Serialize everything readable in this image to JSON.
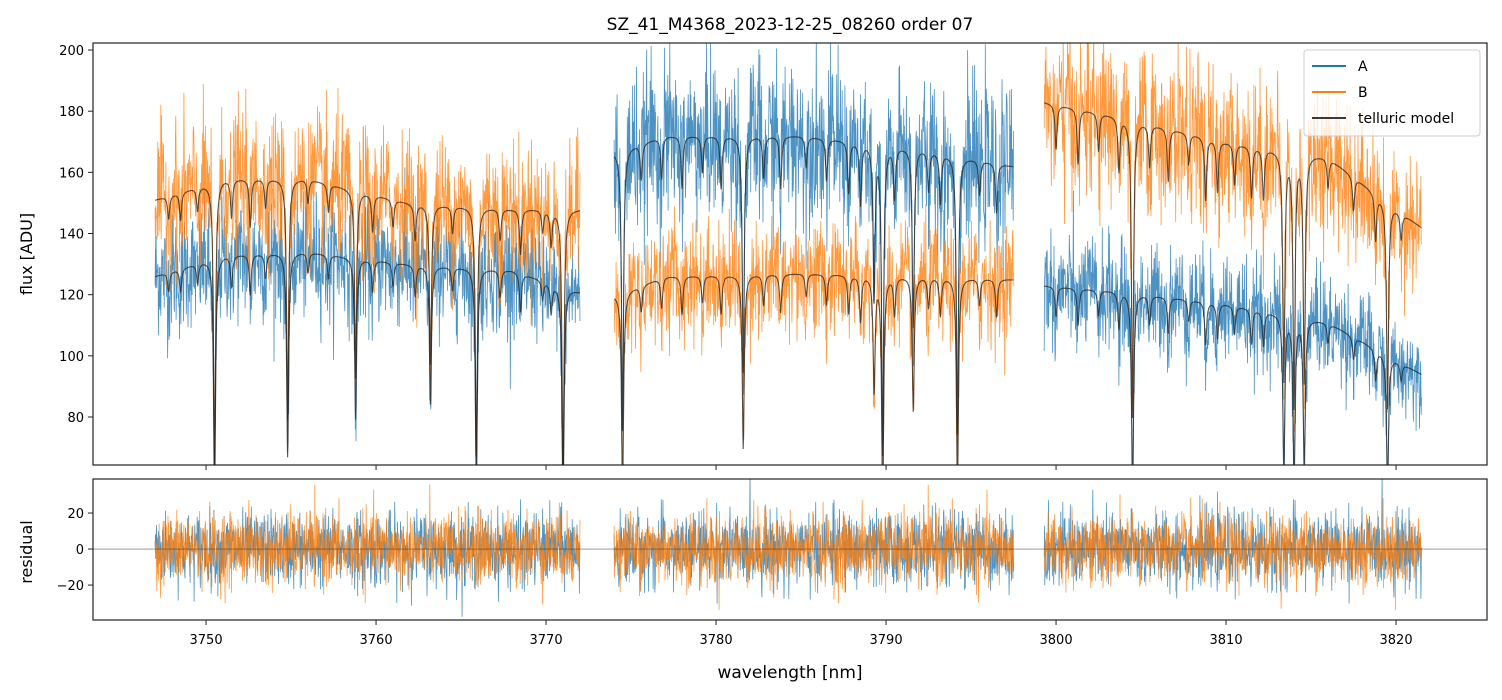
{
  "chart_data": [
    {
      "type": "line",
      "title": "SZ_41_M4368_2023-12-25_08260  order 07",
      "xlabel": "",
      "ylabel": "flux [ADU]",
      "xlim": [
        3743.35,
        3825.35
      ],
      "ylim": [
        64.3,
        202.3
      ],
      "yticks": [
        80,
        100,
        120,
        140,
        160,
        180,
        200
      ],
      "grid": false,
      "legend": {
        "placement": "top-right",
        "entries": [
          {
            "label": "A",
            "color": "#1f77b4"
          },
          {
            "label": "B",
            "color": "#ff7f0e"
          },
          {
            "label": "telluric model",
            "color": "#3a3a3a"
          }
        ]
      },
      "segments": [
        {
          "range": [
            3747.0,
            3772.0
          ],
          "A_continuum": [
            [
              3747.0,
              126
            ],
            [
              3751,
              133
            ],
            [
              3756,
              134
            ],
            [
              3762,
              130
            ],
            [
              3768,
              128
            ],
            [
              3772,
              121
            ]
          ],
          "B_continuum": [
            [
              3747.0,
              151
            ],
            [
              3751,
              158
            ],
            [
              3756,
              158
            ],
            [
              3762,
              150
            ],
            [
              3768,
              148
            ],
            [
              3772,
              148
            ]
          ]
        },
        {
          "range": [
            3774.0,
            3797.5
          ],
          "A_continuum": [
            [
              3774.0,
              167
            ],
            [
              3777,
              172
            ],
            [
              3785,
              172
            ],
            [
              3792,
              168
            ],
            [
              3797.5,
              162
            ]
          ],
          "B_continuum": [
            [
              3774.0,
              120
            ],
            [
              3777,
              126
            ],
            [
              3785,
              127
            ],
            [
              3792,
              126
            ],
            [
              3797.5,
              125
            ]
          ]
        },
        {
          "range": [
            3799.3,
            3821.5
          ],
          "A_continuum": [
            [
              3799.3,
              123
            ],
            [
              3804,
              121
            ],
            [
              3810,
              117
            ],
            [
              3816,
              111
            ],
            [
              3821.5,
              94
            ]
          ],
          "B_continuum": [
            [
              3799.3,
              183
            ],
            [
              3804,
              178
            ],
            [
              3810,
              170
            ],
            [
              3816,
              165
            ],
            [
              3821.5,
              142
            ]
          ]
        }
      ],
      "telluric_lines": [
        [
          3747.8,
          0.05
        ],
        [
          3748.5,
          0.06
        ],
        [
          3749.5,
          0.05
        ],
        [
          3750.5,
          0.6
        ],
        [
          3751.5,
          0.08
        ],
        [
          3752.6,
          0.1
        ],
        [
          3753.5,
          0.06
        ],
        [
          3754.8,
          0.5
        ],
        [
          3756.0,
          0.05
        ],
        [
          3757.2,
          0.06
        ],
        [
          3758.8,
          0.4
        ],
        [
          3759.8,
          0.08
        ],
        [
          3761.0,
          0.06
        ],
        [
          3762.3,
          0.08
        ],
        [
          3763.2,
          0.35
        ],
        [
          3764.5,
          0.06
        ],
        [
          3765.9,
          0.55
        ],
        [
          3767.3,
          0.07
        ],
        [
          3768.5,
          0.1
        ],
        [
          3769.8,
          0.05
        ],
        [
          3770.3,
          0.08
        ],
        [
          3771.0,
          0.6
        ],
        [
          3774.5,
          0.55
        ],
        [
          3775.6,
          0.07
        ],
        [
          3776.8,
          0.08
        ],
        [
          3778.0,
          0.1
        ],
        [
          3779.2,
          0.07
        ],
        [
          3780.3,
          0.1
        ],
        [
          3781.6,
          0.45
        ],
        [
          3782.8,
          0.08
        ],
        [
          3783.8,
          0.1
        ],
        [
          3785.3,
          0.06
        ],
        [
          3786.5,
          0.08
        ],
        [
          3787.8,
          0.1
        ],
        [
          3788.5,
          0.12
        ],
        [
          3789.3,
          0.3
        ],
        [
          3789.8,
          0.6
        ],
        [
          3790.5,
          0.1
        ],
        [
          3791.6,
          0.35
        ],
        [
          3792.5,
          0.08
        ],
        [
          3793.2,
          0.1
        ],
        [
          3794.2,
          0.55
        ],
        [
          3795.5,
          0.07
        ],
        [
          3796.5,
          0.1
        ],
        [
          3800.0,
          0.08
        ],
        [
          3801.3,
          0.1
        ],
        [
          3802.5,
          0.07
        ],
        [
          3803.7,
          0.1
        ],
        [
          3804.5,
          0.55
        ],
        [
          3805.5,
          0.08
        ],
        [
          3806.6,
          0.1
        ],
        [
          3807.8,
          0.06
        ],
        [
          3808.8,
          0.12
        ],
        [
          3809.5,
          0.1
        ],
        [
          3810.5,
          0.08
        ],
        [
          3811.5,
          0.1
        ],
        [
          3812.2,
          0.1
        ],
        [
          3813.4,
          0.45
        ],
        [
          3814.0,
          0.5
        ],
        [
          3814.6,
          0.45
        ],
        [
          3816.0,
          0.06
        ],
        [
          3817.5,
          0.07
        ],
        [
          3818.8,
          0.1
        ],
        [
          3819.5,
          0.45
        ],
        [
          3820.3,
          0.06
        ]
      ],
      "noise_std_fraction": 0.075
    },
    {
      "type": "line",
      "xlabel": "wavelength [nm]",
      "ylabel": "residual",
      "xlim": [
        3743.35,
        3825.35
      ],
      "ylim": [
        -39.4,
        38.9
      ],
      "xticks": [
        3750,
        3760,
        3770,
        3780,
        3790,
        3800,
        3810,
        3820
      ],
      "yticks": [
        -20,
        0,
        20
      ],
      "residual_std": 10,
      "zero_line": 0
    }
  ]
}
